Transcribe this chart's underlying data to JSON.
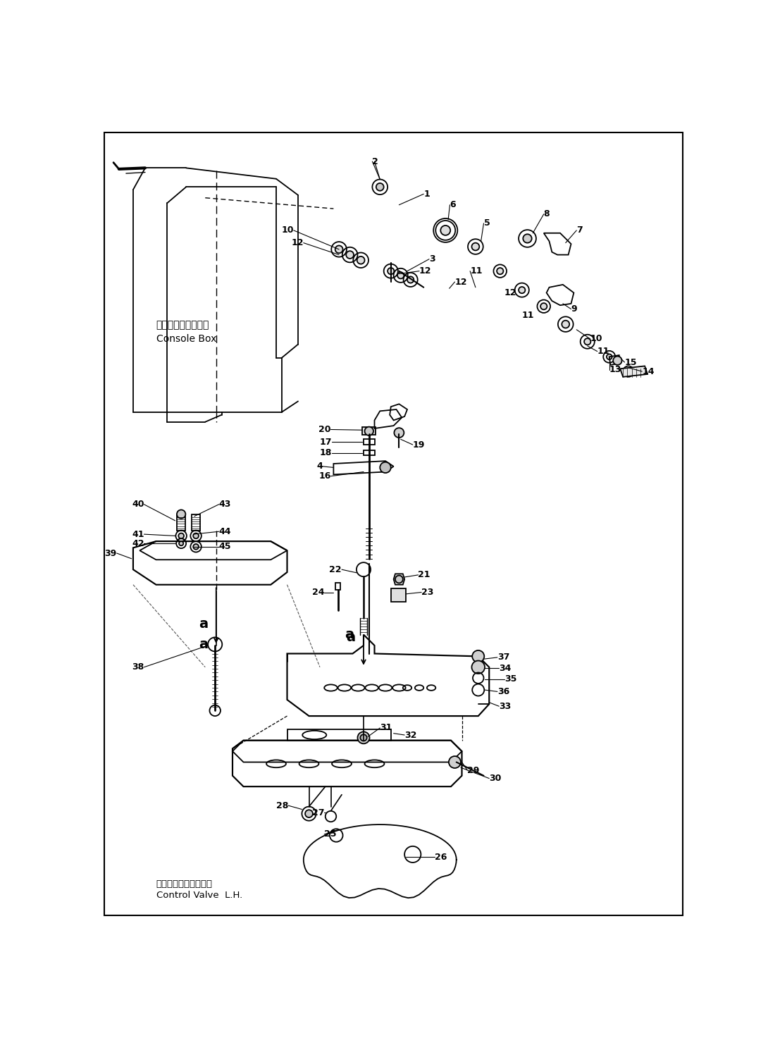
{
  "background_color": "#ffffff",
  "line_color": "#000000",
  "fig_width": 10.9,
  "fig_height": 14.73,
  "dpi": 100,
  "labels": {
    "console_box_jp": "コンソールボックス",
    "console_box_en": "Console Box",
    "control_valve_jp": "コントロールバルブオ",
    "control_valve_en": "Control Valve  L.H."
  }
}
